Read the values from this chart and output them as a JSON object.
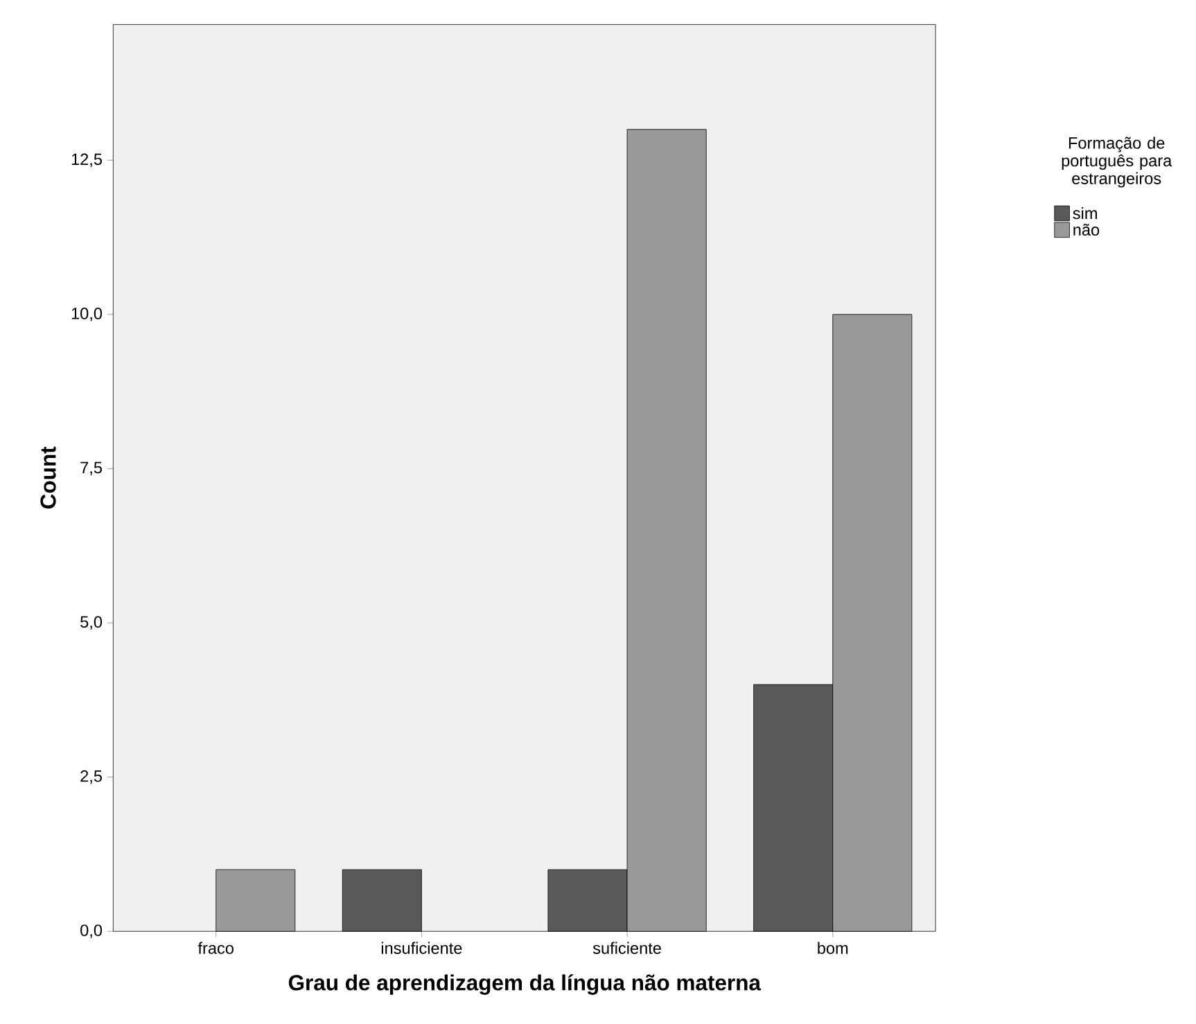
{
  "chart_data": {
    "type": "bar",
    "xlabel": "Grau de aprendizagem da língua não materna",
    "ylabel": "Count",
    "legend_title": "Formação de português para estrangeiros",
    "categories": [
      "fraco",
      "insuficiente",
      "suficiente",
      "bom"
    ],
    "series": [
      {
        "name": "sim",
        "color": "#595959",
        "values": [
          null,
          1,
          1,
          4
        ]
      },
      {
        "name": "não",
        "color": "#999999",
        "values": [
          1,
          null,
          13,
          10
        ]
      }
    ],
    "ylim": [
      0,
      14.7
    ],
    "yticks": [
      {
        "value": 0,
        "label": "0,0"
      },
      {
        "value": 2.5,
        "label": "2,5"
      },
      {
        "value": 5,
        "label": "5,0"
      },
      {
        "value": 7.5,
        "label": "7,5"
      },
      {
        "value": 10,
        "label": "10,0"
      },
      {
        "value": 12.5,
        "label": "12,5"
      }
    ],
    "grid": false,
    "legend": "top right"
  }
}
